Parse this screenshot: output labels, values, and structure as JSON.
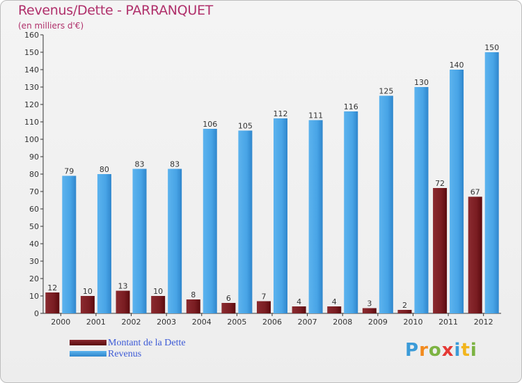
{
  "header": {
    "title": "Revenus/Dette - PARRANQUET",
    "subtitle": "(en milliers d'€)"
  },
  "legend": {
    "debt_label": "Montant de la Dette",
    "revenue_label": "Revenus"
  },
  "logo": {
    "text": "Proxiti"
  },
  "colors": {
    "debt": "#6b0d12",
    "revenue": "#3f9fe2",
    "title": "#b0306b",
    "legend_text": "#3d5bd6"
  },
  "chart_data": {
    "type": "bar",
    "title": "Revenus/Dette - PARRANQUET",
    "ylabel": "(en milliers d'€)",
    "categories": [
      "2000",
      "2001",
      "2002",
      "2003",
      "2004",
      "2005",
      "2006",
      "2007",
      "2008",
      "2009",
      "2010",
      "2011",
      "2012"
    ],
    "series": [
      {
        "name": "Montant de la Dette",
        "values": [
          12,
          10,
          13,
          10,
          8,
          6,
          7,
          4,
          4,
          3,
          2,
          72,
          67
        ]
      },
      {
        "name": "Revenus",
        "values": [
          79,
          80,
          83,
          83,
          106,
          105,
          112,
          111,
          116,
          125,
          130,
          140,
          150
        ]
      }
    ],
    "ylim": [
      0,
      160
    ],
    "yticks": [
      0,
      10,
      20,
      30,
      40,
      50,
      60,
      70,
      80,
      90,
      100,
      110,
      120,
      130,
      140,
      150,
      160
    ],
    "grid": false,
    "legend_position": "bottom-left"
  }
}
